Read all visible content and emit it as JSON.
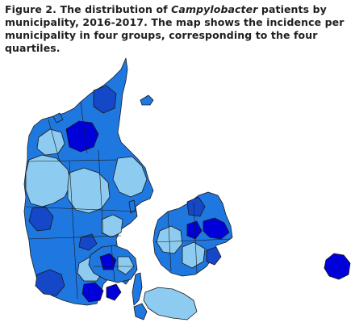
{
  "caption": {
    "prefix": "Figure 2. The distribution of ",
    "organism": "Campylobacter",
    "line1_suffix": " patients by",
    "line2": "municipality, 2016-2017. The map shows the incidence per",
    "line3": "municipality in four groups, corresponding to the four quartiles."
  },
  "quartile_colors": {
    "q1": "#8ecbf0",
    "q2": "#1f77e0",
    "q3": "#1448c8",
    "q4": "#0000d8"
  }
}
